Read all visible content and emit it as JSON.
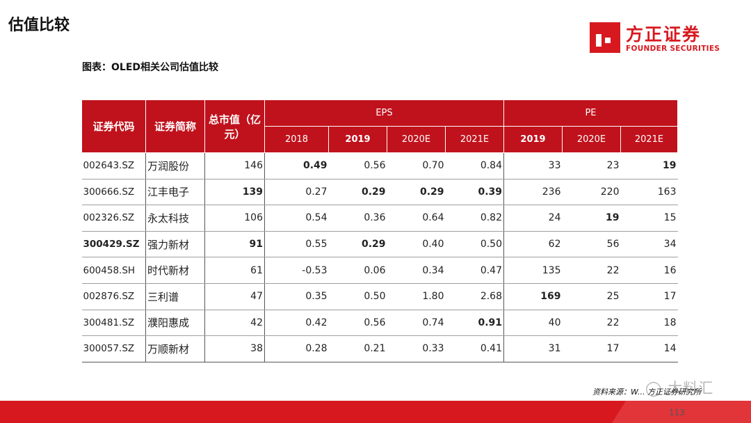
{
  "header": {
    "title": "估值比较",
    "logo_cn": "方正证券",
    "logo_en": "FOUNDER SECURITIES"
  },
  "caption": "图表：OLED相关公司估值比较",
  "table": {
    "headers": {
      "code": "证券代码",
      "name": "证券简称",
      "mcap": "总市值（亿元）",
      "eps": "EPS",
      "pe": "PE",
      "eps_years": [
        "2018",
        "2019",
        "2020E",
        "2021E"
      ],
      "pe_years": [
        "2019",
        "2020E",
        "2021E"
      ]
    },
    "rows": [
      {
        "code": "002643.SZ",
        "name": "万润股份",
        "mcap": "146",
        "eps": [
          "0.49",
          "0.56",
          "0.70",
          "0.84"
        ],
        "pe": [
          "33",
          "23",
          "19"
        ]
      },
      {
        "code": "300666.SZ",
        "name": "江丰电子",
        "mcap": "139",
        "eps": [
          "0.27",
          "0.29",
          "0.29",
          "0.39"
        ],
        "pe": [
          "236",
          "220",
          "163"
        ]
      },
      {
        "code": "002326.SZ",
        "name": "永太科技",
        "mcap": "106",
        "eps": [
          "0.54",
          "0.36",
          "0.64",
          "0.82"
        ],
        "pe": [
          "24",
          "19",
          "15"
        ]
      },
      {
        "code": "300429.SZ",
        "name": "强力新材",
        "mcap": "91",
        "eps": [
          "0.55",
          "0.29",
          "0.40",
          "0.50"
        ],
        "pe": [
          "62",
          "56",
          "34"
        ]
      },
      {
        "code": "600458.SH",
        "name": "时代新材",
        "mcap": "61",
        "eps": [
          "-0.53",
          "0.06",
          "0.34",
          "0.47"
        ],
        "pe": [
          "135",
          "22",
          "16"
        ]
      },
      {
        "code": "002876.SZ",
        "name": "三利谱",
        "mcap": "47",
        "eps": [
          "0.35",
          "0.50",
          "1.80",
          "2.68"
        ],
        "pe": [
          "169",
          "25",
          "17"
        ]
      },
      {
        "code": "300481.SZ",
        "name": "濮阳惠成",
        "mcap": "42",
        "eps": [
          "0.42",
          "0.56",
          "0.74",
          "0.91"
        ],
        "pe": [
          "40",
          "22",
          "18"
        ]
      },
      {
        "code": "300057.SZ",
        "name": "万顺新材",
        "mcap": "38",
        "eps": [
          "0.28",
          "0.21",
          "0.33",
          "0.41"
        ],
        "pe": [
          "31",
          "17",
          "14"
        ]
      }
    ]
  },
  "footer": {
    "source": "资料来源：W...",
    "source_tail": "方正证券研究所",
    "watermark": "大料汇",
    "page_number": "113"
  },
  "colors": {
    "brand_red": "#c0121c",
    "footer_red": "#d7191f"
  }
}
